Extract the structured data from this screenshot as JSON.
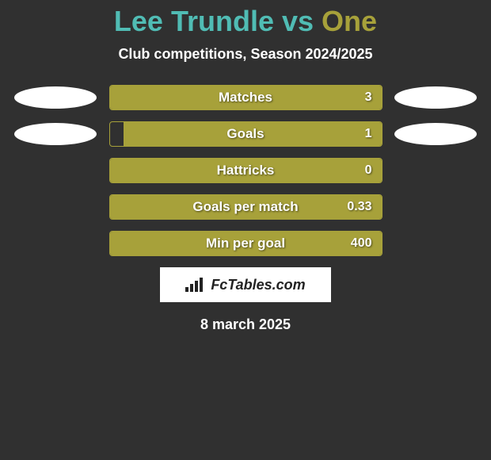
{
  "header": {
    "player_left": "Lee Trundle",
    "vs": "vs",
    "player_right": "One",
    "player_left_color": "#50bcb4",
    "player_right_color": "#a7a13a",
    "subtitle": "Club competitions, Season 2024/2025"
  },
  "theme": {
    "background": "#303030",
    "bar_border_color": "#a7a13a",
    "bar_fill_color": "#a7a13a",
    "oval_color": "#ffffff",
    "branding_bg": "#ffffff",
    "branding_text_color": "#222222"
  },
  "stats": [
    {
      "label": "Matches",
      "value": "3",
      "fill_pct": 100,
      "show_left_oval": true,
      "show_right_oval": true
    },
    {
      "label": "Goals",
      "value": "1",
      "fill_pct": 95,
      "show_left_oval": true,
      "show_right_oval": true
    },
    {
      "label": "Hattricks",
      "value": "0",
      "fill_pct": 100,
      "show_left_oval": false,
      "show_right_oval": false
    },
    {
      "label": "Goals per match",
      "value": "0.33",
      "fill_pct": 100,
      "show_left_oval": false,
      "show_right_oval": false
    },
    {
      "label": "Min per goal",
      "value": "400",
      "fill_pct": 100,
      "show_left_oval": false,
      "show_right_oval": false
    }
  ],
  "branding": {
    "text": "FcTables.com"
  },
  "footer": {
    "date": "8 march 2025"
  }
}
